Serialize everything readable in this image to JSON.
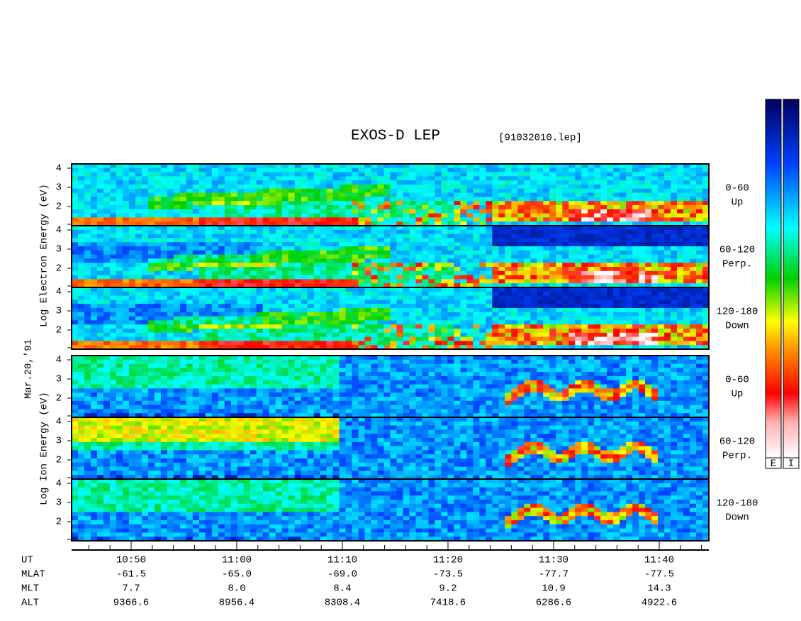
{
  "title": "EXOS-D LEP",
  "file": "[91032010.lep]",
  "date_label": "Mar.20,'91",
  "electron_axis_label": "Log Electron Energy (eV)",
  "ion_axis_label": "Log Ion Energy (eV)",
  "energy_ticks": [
    4,
    3,
    2
  ],
  "panels": [
    {
      "angle": "0-60",
      "direction": "Up"
    },
    {
      "angle": "60-120",
      "direction": "Perp."
    },
    {
      "angle": "120-180",
      "direction": "Down"
    },
    {
      "angle": "0-60",
      "direction": "Up"
    },
    {
      "angle": "60-120",
      "direction": "Perp."
    },
    {
      "angle": "120-180",
      "direction": "Down"
    }
  ],
  "footer": [
    {
      "label": "UT",
      "values": [
        "10:50",
        "11:00",
        "11:10",
        "11:20",
        "11:30",
        "11:40"
      ]
    },
    {
      "label": "MLAT",
      "values": [
        "-61.5",
        "-65.0",
        "-69.0",
        "-73.5",
        "-77.7",
        "-77.5"
      ]
    },
    {
      "label": "MLT",
      "values": [
        "7.7",
        "8.0",
        "8.4",
        "9.2",
        "10.9",
        "14.3"
      ]
    },
    {
      "label": "ALT",
      "values": [
        "9366.6",
        "8956.4",
        "8308.4",
        "7418.6",
        "6286.6",
        "4922.6"
      ]
    }
  ],
  "colorbar_labels": [
    "E",
    "I"
  ]
}
